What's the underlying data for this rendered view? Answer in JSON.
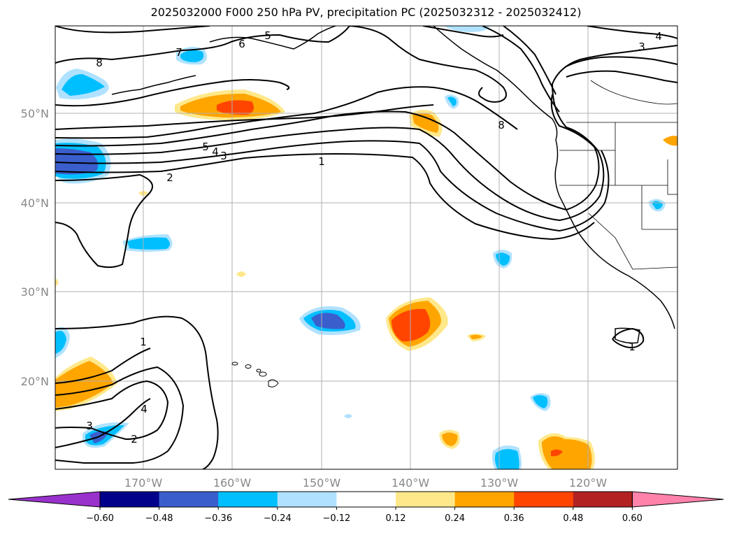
{
  "title": "2025032000 F000 250 hPa PV, precipitation PC (2025032312 - 2025032412)",
  "lat_ticks": [
    "50°N",
    "40°N",
    "30°N",
    "20°N"
  ],
  "lon_ticks": [
    "170°W",
    "160°W",
    "150°W",
    "140°W",
    "130°W",
    "120°W"
  ],
  "colorbar": {
    "ticks": [
      "−0.60",
      "−0.48",
      "−0.36",
      "−0.24",
      "−0.12",
      "0.12",
      "0.24",
      "0.36",
      "0.48",
      "0.60"
    ],
    "colors": [
      "#9932cc",
      "#00008b",
      "#3a5fcd",
      "#00bfff",
      "#b0e2ff",
      "#ffffff",
      "#ffe88a",
      "#ffa500",
      "#ff4500",
      "#b22222",
      "#ff82ab"
    ]
  },
  "contour_labels": [
    "8",
    "7",
    "6",
    "5",
    "5",
    "4",
    "3",
    "2",
    "1",
    "8",
    "3",
    "4",
    "1",
    "4",
    "3",
    "2",
    "1"
  ]
}
